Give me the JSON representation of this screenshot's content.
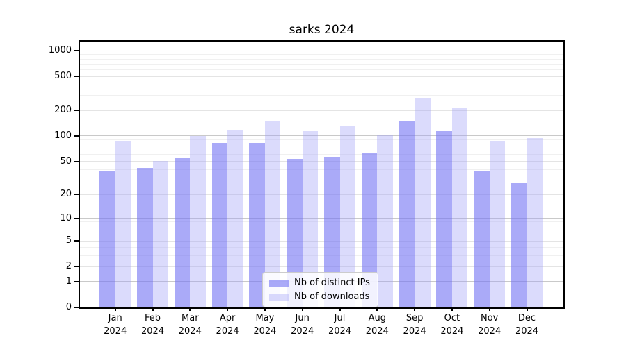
{
  "title": "sarks 2024",
  "chart_data": {
    "type": "bar",
    "title": "sarks 2024",
    "categories": [
      "Jan",
      "Feb",
      "Mar",
      "Apr",
      "May",
      "Jun",
      "Jul",
      "Aug",
      "Sep",
      "Oct",
      "Nov",
      "Dec"
    ],
    "category_year": "2024",
    "series": [
      {
        "name": "Nb of distinct IPs",
        "color": "rgba(118,118,244,0.62)",
        "solid_color": "#a9a9f4",
        "values": [
          38,
          42,
          56,
          83,
          83,
          53,
          57,
          64,
          150,
          113,
          38,
          28
        ]
      },
      {
        "name": "Nb of downloads",
        "color": "rgba(160,160,246,0.38)",
        "solid_color": "#dadafa",
        "values": [
          88,
          51,
          100,
          118,
          151,
          114,
          133,
          104,
          280,
          212,
          88,
          94
        ]
      }
    ],
    "xlabel": "",
    "ylabel": "",
    "y_axis": {
      "scale": "log1p",
      "ticks": [
        0,
        1,
        2,
        5,
        10,
        20,
        50,
        100,
        200,
        500,
        1000
      ],
      "major_gridlines": [
        1,
        10,
        100,
        1000
      ],
      "mid_gridlines": [
        2,
        5,
        20,
        50,
        200,
        500
      ],
      "minor_gridlines": [
        3,
        4,
        6,
        7,
        8,
        9,
        30,
        40,
        60,
        70,
        80,
        90,
        300,
        400,
        600,
        700,
        800,
        900
      ],
      "max_display": 1280
    },
    "grid": "on",
    "legend_position": "lower center"
  }
}
